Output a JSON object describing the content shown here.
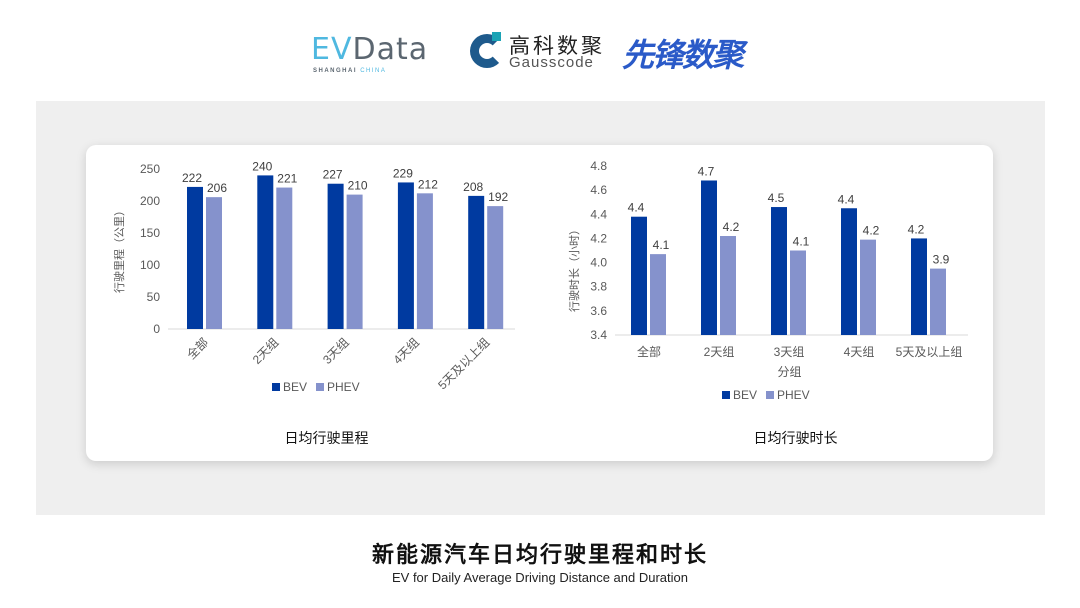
{
  "logos": {
    "evdata": {
      "e": "EV",
      "d": "Data",
      "sub1": "SHANGHAI",
      "sub2": "CHINA"
    },
    "gausscode": {
      "cn": "高科数聚",
      "en": "Gausscode"
    },
    "xianfeng": "先锋数聚"
  },
  "colors": {
    "bev": "#003aa0",
    "phev": "#8592cc"
  },
  "chart_data": [
    {
      "type": "bar",
      "title": "日均行驶里程",
      "ylabel": "行驶里程（公里）",
      "xlabel": "",
      "ylim": [
        0,
        250
      ],
      "yticks": [
        0,
        50,
        100,
        150,
        200,
        250
      ],
      "categories": [
        "全部",
        "2天组",
        "3天组",
        "4天组",
        "5天及以上组"
      ],
      "legend": "bottom",
      "series": [
        {
          "name": "BEV",
          "values": [
            222,
            240,
            227,
            229,
            208
          ],
          "labels": [
            "222",
            "240",
            "227",
            "229",
            "208"
          ]
        },
        {
          "name": "PHEV",
          "values": [
            206,
            221,
            210,
            212,
            192
          ],
          "labels": [
            "206",
            "221",
            "210",
            "212",
            "192"
          ]
        }
      ]
    },
    {
      "type": "bar",
      "title": "日均行驶时长",
      "ylabel": "行驶时长（小时）",
      "xlabel": "分组",
      "ylim": [
        3.4,
        4.8
      ],
      "yticks": [
        "3.4",
        "3.6",
        "3.8",
        "4.0",
        "4.2",
        "4.4",
        "4.6",
        "4.8"
      ],
      "categories": [
        "全部",
        "2天组",
        "3天组",
        "4天组",
        "5天及以上组"
      ],
      "legend": "bottom",
      "series": [
        {
          "name": "BEV",
          "values": [
            4.38,
            4.68,
            4.46,
            4.45,
            4.2
          ],
          "labels": [
            "4.4",
            "4.7",
            "4.5",
            "4.4",
            "4.2"
          ]
        },
        {
          "name": "PHEV",
          "values": [
            4.07,
            4.22,
            4.1,
            4.19,
            3.95
          ],
          "labels": [
            "4.1",
            "4.2",
            "4.1",
            "4.2",
            "3.9"
          ]
        }
      ]
    }
  ],
  "footer": {
    "title": "新能源汽车日均行驶里程和时长",
    "subtitle": "EV for Daily Average Driving Distance and Duration"
  }
}
